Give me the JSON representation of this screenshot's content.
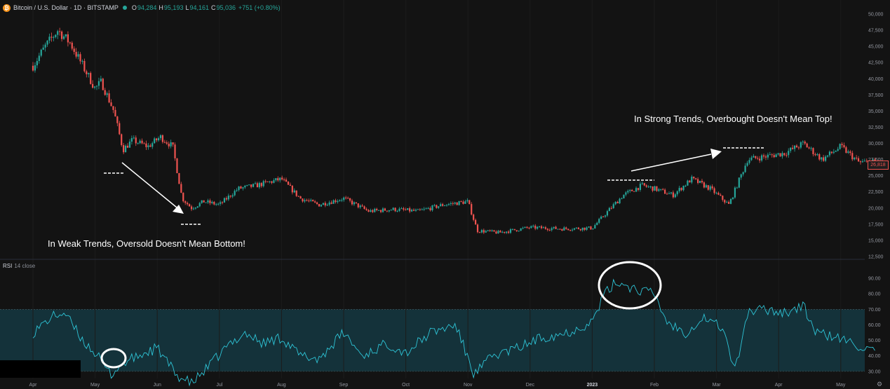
{
  "header": {
    "symbol": "Bitcoin / U.S. Dollar · 1D · BITSTAMP",
    "coin_glyph": "₿",
    "o_label": "O",
    "o_value": "94,284",
    "h_label": "H",
    "h_value": "95,193",
    "l_label": "L",
    "l_value": "94,161",
    "c_label": "C",
    "c_value": "95,036",
    "change": "+751 (+0.80%)"
  },
  "rsi_panel": {
    "label": "RSI",
    "sublabel": "14 close"
  },
  "price_tag": "26,818",
  "annotations": {
    "weak": "In Weak Trends, Oversold Doesn't Mean Bottom!",
    "strong": "In Strong Trends, Overbought Doesn't Mean Top!"
  },
  "colors": {
    "up": "#26a69a",
    "down": "#ef5350",
    "rsi_line": "#2ec4d6",
    "rsi_band": "#14323a",
    "background": "#131313",
    "annotation": "#ffffff"
  },
  "chart_data": [
    {
      "type": "candlestick",
      "ylim": [
        12500,
        50000
      ],
      "y_ticks": [
        "12,500",
        "15,000",
        "17,500",
        "20,000",
        "22,500",
        "25,000",
        "27,500",
        "30,000",
        "32,500",
        "35,000",
        "37,500",
        "40,000",
        "42,500",
        "45,000",
        "47,500",
        "50,000"
      ],
      "x_ticks": [
        "Apr",
        "May",
        "Jun",
        "Jul",
        "Aug",
        "Sep",
        "Oct",
        "Nov",
        "Dec",
        "2023",
        "Feb",
        "Mar",
        "Apr",
        "May"
      ],
      "months_x": [
        0,
        1,
        2,
        3,
        4,
        5,
        6,
        7,
        8,
        9,
        10,
        11,
        12,
        13
      ],
      "price_path": [
        [
          0,
          42000
        ],
        [
          0.2,
          45000
        ],
        [
          0.4,
          47500
        ],
        [
          0.6,
          45500
        ],
        [
          0.8,
          42000
        ],
        [
          1.0,
          38500
        ],
        [
          1.1,
          39500
        ],
        [
          1.3,
          35000
        ],
        [
          1.45,
          29000
        ],
        [
          1.6,
          30500
        ],
        [
          1.85,
          29500
        ],
        [
          2.05,
          31000
        ],
        [
          2.25,
          29500
        ],
        [
          2.4,
          21500
        ],
        [
          2.55,
          20000
        ],
        [
          2.75,
          21000
        ],
        [
          3.0,
          20500
        ],
        [
          3.3,
          23000
        ],
        [
          3.6,
          23500
        ],
        [
          4.0,
          24500
        ],
        [
          4.3,
          21500
        ],
        [
          4.6,
          20500
        ],
        [
          5.0,
          21500
        ],
        [
          5.4,
          19500
        ],
        [
          5.8,
          19800
        ],
        [
          6.2,
          19500
        ],
        [
          6.6,
          20500
        ],
        [
          7.0,
          21000
        ],
        [
          7.15,
          16500
        ],
        [
          7.5,
          16200
        ],
        [
          8.0,
          17000
        ],
        [
          8.5,
          16800
        ],
        [
          9.0,
          16900
        ],
        [
          9.25,
          19500
        ],
        [
          9.5,
          22000
        ],
        [
          9.8,
          23500
        ],
        [
          10.0,
          23000
        ],
        [
          10.3,
          22000
        ],
        [
          10.6,
          24500
        ],
        [
          10.9,
          23000
        ],
        [
          11.2,
          20500
        ],
        [
          11.5,
          27500
        ],
        [
          11.8,
          28000
        ],
        [
          12.1,
          28500
        ],
        [
          12.4,
          30000
        ],
        [
          12.7,
          27500
        ],
        [
          13.0,
          29500
        ],
        [
          13.3,
          27000
        ],
        [
          13.55,
          27200
        ]
      ]
    },
    {
      "type": "line",
      "title": "RSI",
      "ylim": [
        20,
        95
      ],
      "y_ticks": [
        "30.00",
        "40.00",
        "50.00",
        "60.00",
        "70.00",
        "80.00",
        "90.00"
      ],
      "overbought": 70,
      "oversold": 30,
      "rsi_path": [
        [
          0,
          55
        ],
        [
          0.3,
          65
        ],
        [
          0.5,
          68
        ],
        [
          0.8,
          50
        ],
        [
          1.0,
          42
        ],
        [
          1.25,
          28
        ],
        [
          1.45,
          35
        ],
        [
          1.7,
          40
        ],
        [
          2.0,
          45
        ],
        [
          2.3,
          28
        ],
        [
          2.55,
          22
        ],
        [
          2.8,
          32
        ],
        [
          3.1,
          45
        ],
        [
          3.4,
          55
        ],
        [
          3.7,
          48
        ],
        [
          4.0,
          52
        ],
        [
          4.3,
          40
        ],
        [
          4.6,
          38
        ],
        [
          5.0,
          55
        ],
        [
          5.3,
          40
        ],
        [
          5.7,
          48
        ],
        [
          6.0,
          42
        ],
        [
          6.4,
          55
        ],
        [
          6.8,
          60
        ],
        [
          7.1,
          28
        ],
        [
          7.4,
          40
        ],
        [
          7.8,
          45
        ],
        [
          8.2,
          52
        ],
        [
          8.6,
          55
        ],
        [
          9.0,
          62
        ],
        [
          9.2,
          80
        ],
        [
          9.4,
          88
        ],
        [
          9.7,
          83
        ],
        [
          10.0,
          80
        ],
        [
          10.2,
          62
        ],
        [
          10.5,
          55
        ],
        [
          10.8,
          65
        ],
        [
          11.1,
          58
        ],
        [
          11.3,
          30
        ],
        [
          11.5,
          68
        ],
        [
          11.8,
          70
        ],
        [
          12.1,
          68
        ],
        [
          12.4,
          72
        ],
        [
          12.6,
          55
        ],
        [
          12.9,
          52
        ],
        [
          13.2,
          48
        ],
        [
          13.55,
          42
        ]
      ]
    }
  ]
}
